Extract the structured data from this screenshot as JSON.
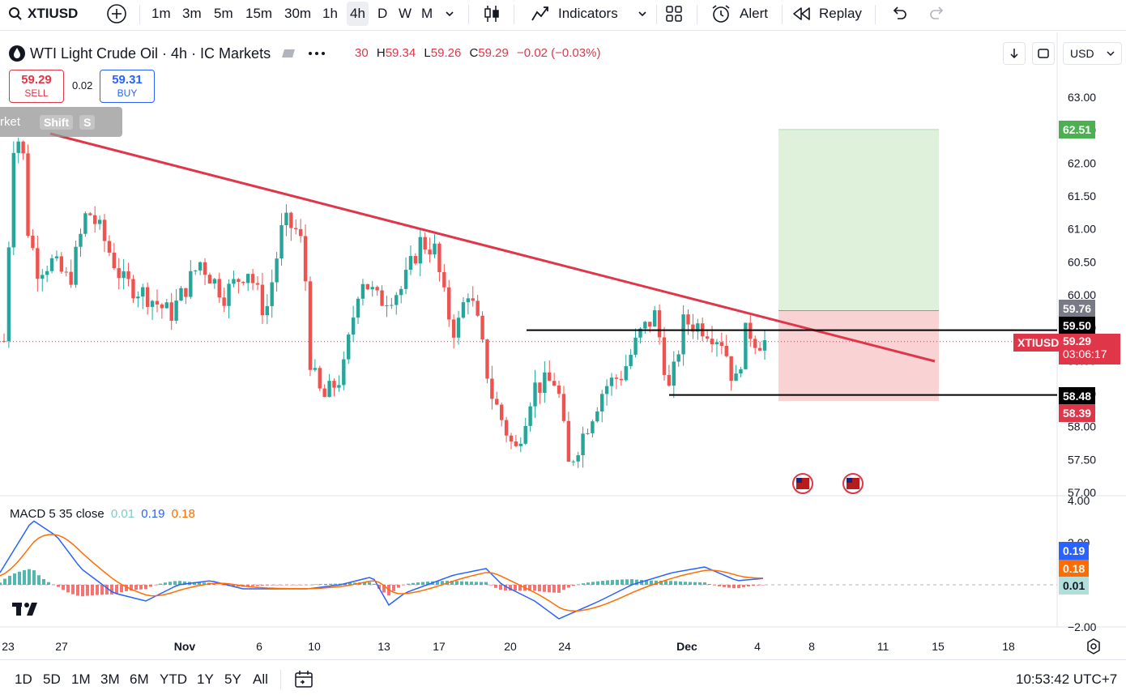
{
  "toolbar": {
    "symbol": "XTIUSD",
    "intervals": [
      "1m",
      "3m",
      "5m",
      "15m",
      "30m",
      "1h",
      "4h",
      "D",
      "W",
      "M"
    ],
    "active_interval": "4h",
    "indicators_label": "Indicators",
    "alert_label": "Alert",
    "replay_label": "Replay"
  },
  "legend": {
    "title": "WTI Light Crude Oil · 4h · IC Markets",
    "ohlc_open_tail": "30",
    "high_key": "H",
    "high": "59.34",
    "low_key": "L",
    "low": "59.26",
    "close_key": "C",
    "close": "59.29",
    "change": "−0.02 (−0.03%)"
  },
  "trade": {
    "sell_price": "59.29",
    "sell_label": "SELL",
    "spread": "0.02",
    "buy_price": "59.31",
    "buy_label": "BUY"
  },
  "shift_tip": {
    "text": "rket",
    "key1": "Shift",
    "key2": "S"
  },
  "right_controls": {
    "currency": "USD"
  },
  "price_axis": {
    "ticks": [
      "63.00",
      "62.50",
      "62.00",
      "61.50",
      "61.00",
      "60.50",
      "60.00",
      "59.50",
      "59.00",
      "58.50",
      "58.00",
      "57.50",
      "57.00"
    ]
  },
  "price_labels": {
    "target": "62.51",
    "entry_top": "59.76",
    "level_upper": "59.50",
    "current_symbol": "XTIUSD",
    "current_price": "59.29",
    "countdown": "03:06:17",
    "level_lower": "58.48",
    "stop": "58.39"
  },
  "macd": {
    "name": "MACD 5 35 close",
    "hist": "0.01",
    "macd": "0.19",
    "signal": "0.18",
    "axis_ticks": [
      "4.00",
      "2.00",
      "−2.00"
    ],
    "labels": {
      "macd": "0.19",
      "signal": "0.18",
      "hist": "0.01"
    }
  },
  "time_axis": [
    "23",
    "27",
    "Nov",
    "6",
    "10",
    "13",
    "17",
    "20",
    "24",
    "Dec",
    "4",
    "8",
    "11",
    "15",
    "18"
  ],
  "bottombar": {
    "ranges": [
      "1D",
      "5D",
      "1M",
      "3M",
      "6M",
      "YTD",
      "1Y",
      "5Y",
      "All"
    ],
    "clock": "10:53:42 UTC+7"
  },
  "colors": {
    "up": "#26a69a",
    "down": "#ef5350",
    "trendline": "#e0364a",
    "profit_zone": "#dff0db",
    "loss_zone": "#f9d2d4",
    "macd_line": "#2962ff",
    "signal_line": "#ff6d00"
  },
  "chart_data": {
    "type": "candlestick",
    "price_range": [
      57.0,
      63.0
    ],
    "pairs_points_close": [
      [
        "10-23",
        59.3
      ],
      [
        "10-27",
        62.2
      ],
      [
        "Nov",
        60.8
      ],
      [
        "11-06",
        60.2
      ],
      [
        "11-10",
        59.6
      ],
      [
        "11-12",
        61.1
      ],
      [
        "11-13",
        58.4
      ],
      [
        "11-17",
        59.9
      ],
      [
        "11-19",
        60.8
      ],
      [
        "11-20",
        59.5
      ],
      [
        "11-24",
        57.7
      ],
      [
        "11-27",
        58.0
      ],
      [
        "Dec",
        59.5
      ],
      [
        "12-03",
        59.3
      ]
    ],
    "trendline": {
      "from": [
        "10-27",
        62.4
      ],
      "to": [
        "12-15",
        58.6
      ]
    },
    "horizontal_levels": [
      59.5,
      58.48
    ],
    "position": {
      "target": 62.51,
      "entry": 59.76,
      "stop": 58.39
    }
  }
}
